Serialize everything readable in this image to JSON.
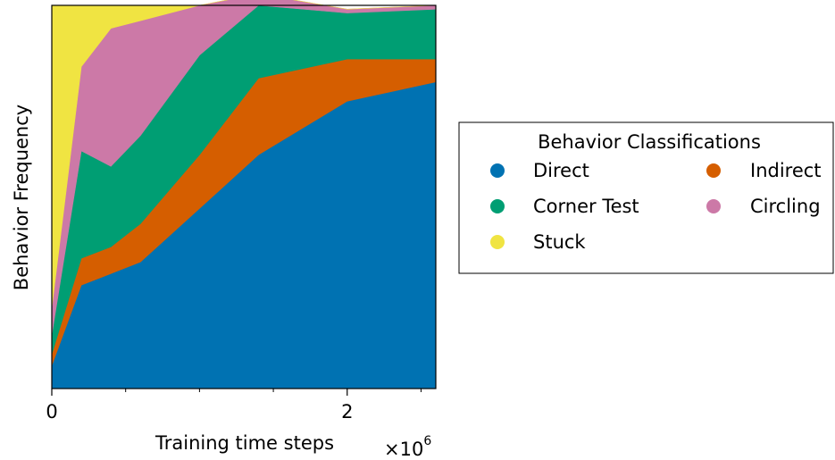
{
  "chart_data": {
    "type": "area",
    "stacked": true,
    "normalized": true,
    "xlabel": "Training time steps",
    "ylabel": "Behavior Frequency",
    "x_multiplier_label": "×10",
    "x_multiplier_exp": "6",
    "xlim": [
      0,
      2.6
    ],
    "ylim": [
      0,
      1
    ],
    "xticks": [
      0,
      2
    ],
    "xtick_labels": [
      "0",
      "2"
    ],
    "minor_xticks": [
      0.5,
      1.0,
      1.5,
      2.5
    ],
    "x": [
      0,
      0.2,
      0.4,
      0.6,
      1.0,
      1.4,
      2.0,
      2.6
    ],
    "series": [
      {
        "name": "Direct",
        "color": "#0072b2",
        "values": [
          0.06,
          0.27,
          0.3,
          0.33,
          0.47,
          0.61,
          0.75,
          0.8
        ]
      },
      {
        "name": "Indirect",
        "color": "#d55e00",
        "values": [
          0.03,
          0.07,
          0.07,
          0.1,
          0.14,
          0.2,
          0.11,
          0.06
        ]
      },
      {
        "name": "Corner Test",
        "color": "#009e73",
        "values": [
          0.05,
          0.28,
          0.21,
          0.23,
          0.26,
          0.19,
          0.12,
          0.13
        ]
      },
      {
        "name": "Circling",
        "color": "#cc79a7",
        "values": [
          0.07,
          0.22,
          0.36,
          0.3,
          0.13,
          0.03,
          0.01,
          0.01
        ]
      },
      {
        "name": "Stuck",
        "color": "#f0e442",
        "values": [
          0.79,
          0.16,
          0.06,
          0.04,
          0.0,
          0.0,
          0.0,
          0.0
        ]
      }
    ],
    "legend": {
      "title": "Behavior Classifications",
      "placement": "right",
      "columns": 2,
      "entries": [
        "Direct",
        "Indirect",
        "Corner Test",
        "Circling",
        "Stuck"
      ]
    },
    "grid": false
  }
}
